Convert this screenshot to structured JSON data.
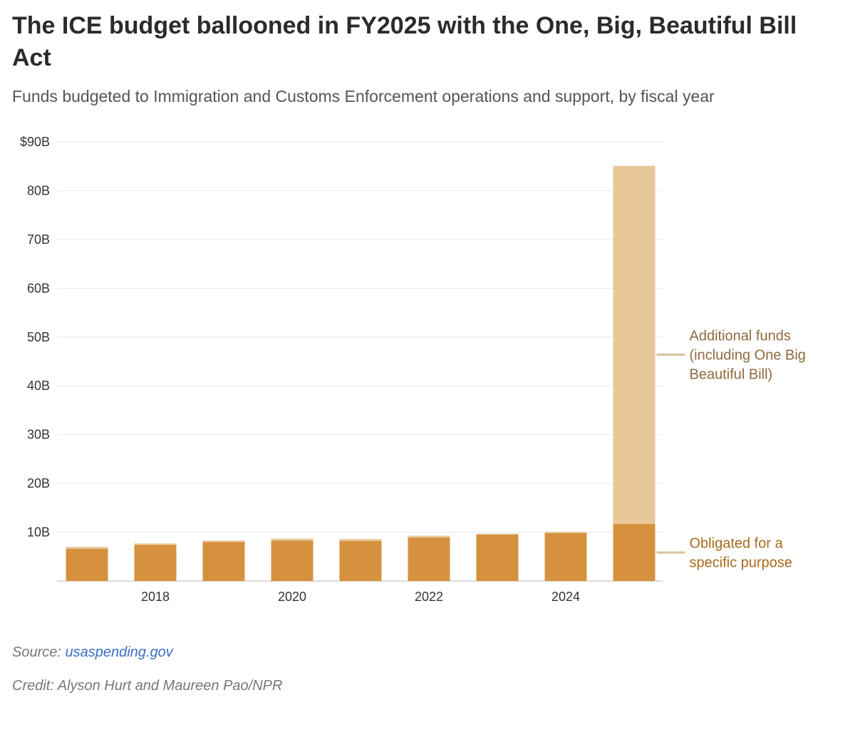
{
  "colors": {
    "obligated": "#d6913f",
    "additional": "#e8c898",
    "annotation_additional": "#8f6a3e",
    "annotation_obligated": "#a8691c",
    "leader_line": "#d8bf9c",
    "grid": "#e6e6e6",
    "axis": "#bbbbbb"
  },
  "chart_data": {
    "type": "bar",
    "stacked": true,
    "title": "The ICE budget ballooned in FY2025 with the One, Big, Beautiful Bill Act",
    "subtitle": "Funds budgeted to Immigration and Customs Enforcement operations and support, by fiscal year",
    "xlabel": "",
    "ylabel": "",
    "x": [
      2017,
      2018,
      2019,
      2020,
      2021,
      2022,
      2023,
      2024,
      2025
    ],
    "x_tick_labels": [
      "2018",
      "2020",
      "2022",
      "2024"
    ],
    "x_tick_values": [
      2018,
      2020,
      2022,
      2024
    ],
    "ylim": [
      0,
      90
    ],
    "y_ticks": [
      10,
      20,
      30,
      40,
      50,
      60,
      70,
      80,
      90
    ],
    "y_tick_labels": [
      "10B",
      "20B",
      "30B",
      "40B",
      "50B",
      "60B",
      "70B",
      "80B",
      "$90B"
    ],
    "grid": true,
    "units": "billions of dollars",
    "series": [
      {
        "name": "Obligated for a specific purpose",
        "values": [
          6.6,
          7.4,
          8.0,
          8.3,
          8.2,
          8.9,
          9.5,
          9.8,
          11.7
        ]
      },
      {
        "name": "Additional funds (including One Big Beautiful Bill)",
        "values": [
          0.4,
          0.3,
          0.3,
          0.4,
          0.4,
          0.4,
          0.2,
          0.3,
          73.4
        ]
      }
    ],
    "annotations": [
      {
        "series": "additional",
        "lines": [
          "Additional funds",
          "(including One Big",
          "Beautiful Bill)"
        ]
      },
      {
        "series": "obligated",
        "lines": [
          "Obligated for a",
          "specific purpose"
        ]
      }
    ]
  },
  "footer": {
    "source_label": "Source: ",
    "source_link": "usaspending.gov",
    "credit": "Credit: Alyson Hurt and Maureen Pao/NPR"
  }
}
